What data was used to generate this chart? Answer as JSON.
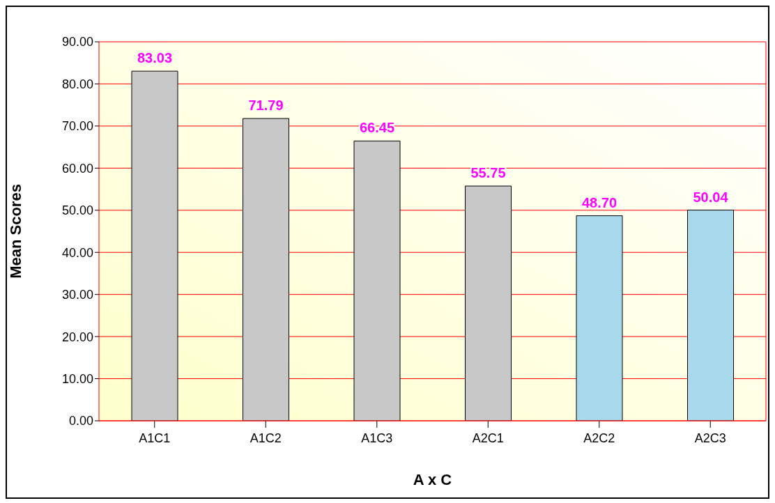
{
  "chart_data": {
    "type": "bar",
    "xlabel": "A x C",
    "ylabel": "Mean Scores",
    "categories": [
      "A1C1",
      "A1C2",
      "A1C3",
      "A2C1",
      "A2C2",
      "A2C3"
    ],
    "values": [
      83.03,
      71.79,
      66.45,
      55.75,
      48.7,
      50.04
    ],
    "value_labels": [
      "83.03",
      "71.79",
      "66.45",
      "55.75",
      "48.70",
      "50.04"
    ],
    "colors": [
      "#c8c8c8",
      "#c8c8c8",
      "#c8c8c8",
      "#c8c8c8",
      "#a8d8ec",
      "#a8d8ec"
    ],
    "ylim": [
      0,
      90
    ],
    "yticks": [
      {
        "value": 0,
        "label": "0.00"
      },
      {
        "value": 10,
        "label": "10.00"
      },
      {
        "value": 20,
        "label": "20.00"
      },
      {
        "value": 30,
        "label": "30.00"
      },
      {
        "value": 40,
        "label": "40.00"
      },
      {
        "value": 50,
        "label": "50.00"
      },
      {
        "value": 60,
        "label": "60.00"
      },
      {
        "value": 70,
        "label": "70.00"
      },
      {
        "value": 80,
        "label": "80.00"
      },
      {
        "value": 90,
        "label": "90.00"
      }
    ],
    "grid": "y",
    "legend": false
  }
}
